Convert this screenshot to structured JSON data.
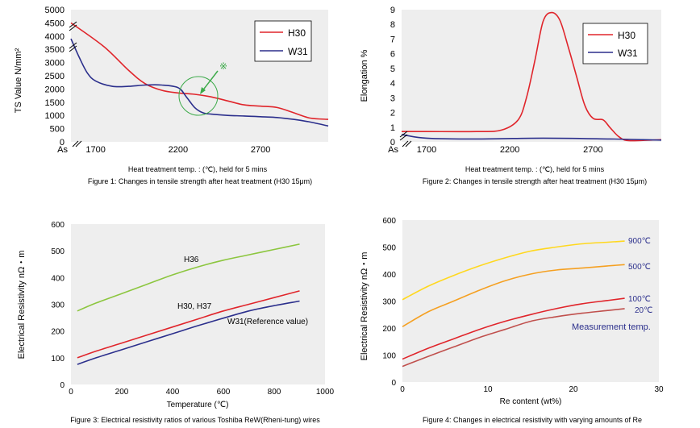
{
  "colors": {
    "plot_bg": "#eeeeee",
    "h30": "#e0252b",
    "w31": "#2b2f8c",
    "green": "#8cc63f",
    "yellow": "#ffd81f",
    "orange": "#f5a021",
    "red": "#e0252b",
    "dark_red": "#c0504d",
    "marker": "#3daa4a",
    "text_blue": "#2b2f8c"
  },
  "chart_data": [
    {
      "id": "chart1",
      "type": "line",
      "ylabel": "TS Value  N/mm²",
      "xlabel": "Heat treatment temp. : (℃), held for 5 mins",
      "caption": "Figure 1: Changes in tensile strength after heat treatment (H30 15μm)",
      "xlim": [
        1550,
        3110
      ],
      "ylim": [
        0,
        5000
      ],
      "yticks": [
        0,
        500,
        1000,
        1500,
        2000,
        2500,
        3000,
        3500,
        4000,
        4500,
        5000
      ],
      "xticks": [
        {
          "v": 1550,
          "label": "As"
        },
        {
          "v": 1700,
          "label": "1700"
        },
        {
          "v": 2200,
          "label": "2200"
        },
        {
          "v": 2700,
          "label": "2700"
        }
      ],
      "series": [
        {
          "name": "H30",
          "color": "#e0252b",
          "x": [
            1550,
            1750,
            1900,
            2000,
            2100,
            2200,
            2300,
            2400,
            2500,
            2600,
            2700,
            2800,
            2900,
            3000,
            3110
          ],
          "values": [
            4500,
            3600,
            2700,
            2200,
            1950,
            1850,
            1800,
            1700,
            1550,
            1400,
            1350,
            1300,
            1100,
            900,
            850
          ]
        },
        {
          "name": "W31",
          "color": "#2b2f8c",
          "x": [
            1550,
            1600,
            1650,
            1700,
            1800,
            1900,
            2000,
            2100,
            2200,
            2250,
            2300,
            2350,
            2400,
            2500,
            2600,
            2700,
            2800,
            2900,
            3000,
            3110
          ],
          "values": [
            3900,
            3200,
            2600,
            2300,
            2100,
            2100,
            2150,
            2150,
            2050,
            1700,
            1300,
            1100,
            1050,
            1000,
            980,
            950,
            920,
            850,
            750,
            600
          ]
        }
      ],
      "legend": [
        "H30",
        "W31"
      ],
      "annotation": "※"
    },
    {
      "id": "chart2",
      "type": "line",
      "ylabel": "Elongation  %",
      "xlabel": "Heat treatment temp. : (℃), held for 5 mins",
      "caption": "Figure 2: Changes in tensile strength after heat treatment (H30 15μm)",
      "xlim": [
        1550,
        3110
      ],
      "ylim": [
        0,
        9
      ],
      "yticks": [
        0,
        1,
        2,
        3,
        4,
        5,
        6,
        7,
        8,
        9
      ],
      "xticks": [
        {
          "v": 1550,
          "label": "As"
        },
        {
          "v": 1700,
          "label": "1700"
        },
        {
          "v": 2200,
          "label": "2200"
        },
        {
          "v": 2700,
          "label": "2700"
        }
      ],
      "series": [
        {
          "name": "H30",
          "color": "#e0252b",
          "x": [
            1550,
            1700,
            2000,
            2150,
            2250,
            2300,
            2350,
            2400,
            2450,
            2500,
            2550,
            2600,
            2650,
            2700,
            2760,
            2800,
            2850,
            2900,
            3000,
            3110
          ],
          "values": [
            0.7,
            0.7,
            0.7,
            0.8,
            1.5,
            3.0,
            5.5,
            8.2,
            8.8,
            8.3,
            6.5,
            4.5,
            2.5,
            1.6,
            1.5,
            1.0,
            0.4,
            0.1,
            0.1,
            0.15
          ]
        },
        {
          "name": "W31",
          "color": "#2b2f8c",
          "x": [
            1550,
            1700,
            2000,
            2400,
            2800,
            3000,
            3110
          ],
          "values": [
            0.5,
            0.25,
            0.2,
            0.25,
            0.2,
            0.15,
            0.12
          ]
        }
      ],
      "legend": [
        "H30",
        "W31"
      ]
    },
    {
      "id": "chart3",
      "type": "line",
      "ylabel": "Electrical Resistivity  nΩ・m",
      "xlabel": "Temperature (℃)",
      "caption": "Figure 3: Electrical resistivity ratios of various Toshiba ReW(Rheni-tung) wires",
      "xlim": [
        0,
        1000
      ],
      "ylim": [
        0,
        600
      ],
      "xticks": [
        0,
        200,
        400,
        600,
        800,
        1000
      ],
      "yticks": [
        0,
        100,
        200,
        300,
        400,
        500,
        600
      ],
      "series": [
        {
          "name": "H36",
          "color": "#8cc63f",
          "x": [
            25,
            100,
            200,
            300,
            400,
            500,
            600,
            700,
            800,
            900
          ],
          "values": [
            275,
            305,
            340,
            375,
            410,
            440,
            465,
            485,
            505,
            525
          ]
        },
        {
          "name": "H30, H37",
          "color": "#e0252b",
          "x": [
            25,
            100,
            200,
            300,
            400,
            500,
            600,
            700,
            800,
            900
          ],
          "values": [
            100,
            125,
            155,
            185,
            215,
            245,
            275,
            300,
            325,
            350
          ]
        },
        {
          "name": "W31(Reference value)",
          "color": "#2b2f8c",
          "x": [
            25,
            100,
            200,
            300,
            400,
            500,
            600,
            700,
            800,
            900
          ],
          "values": [
            75,
            100,
            130,
            160,
            190,
            220,
            248,
            275,
            295,
            312
          ]
        }
      ],
      "labels": [
        "H36",
        "H30, H37",
        "W31(Reference value)"
      ]
    },
    {
      "id": "chart4",
      "type": "line",
      "ylabel": "Electrical Resistivity  nΩ・m",
      "xlabel": "Re content (wt%)",
      "caption": "Figure 4: Changes in electrical resistivity with varying amounts of Re",
      "xlim": [
        0,
        30
      ],
      "ylim": [
        0,
        600
      ],
      "xticks": [
        0,
        10,
        20,
        30
      ],
      "yticks": [
        0,
        100,
        200,
        300,
        400,
        500,
        600
      ],
      "series": [
        {
          "name": "900℃",
          "color": "#ffd81f",
          "x": [
            0,
            3,
            6,
            9,
            12,
            15,
            18,
            21,
            24,
            26
          ],
          "values": [
            305,
            355,
            395,
            430,
            460,
            485,
            500,
            512,
            518,
            522
          ]
        },
        {
          "name": "500℃",
          "color": "#f5a021",
          "x": [
            0,
            3,
            6,
            9,
            12,
            15,
            18,
            21,
            24,
            26
          ],
          "values": [
            205,
            260,
            300,
            340,
            375,
            400,
            415,
            422,
            430,
            435
          ]
        },
        {
          "name": "100℃",
          "color": "#e0252b",
          "x": [
            0,
            3,
            6,
            9,
            12,
            15,
            18,
            21,
            24,
            26
          ],
          "values": [
            85,
            125,
            160,
            195,
            225,
            250,
            272,
            290,
            302,
            310
          ]
        },
        {
          "name": "20℃",
          "color": "#c0504d",
          "x": [
            0,
            3,
            6,
            9,
            12,
            15,
            18,
            21,
            24,
            26
          ],
          "values": [
            58,
            95,
            130,
            165,
            195,
            225,
            242,
            255,
            265,
            272
          ]
        }
      ],
      "labels": [
        "900℃",
        "500℃",
        "100℃",
        "20℃"
      ],
      "annotation": "Measurement temp."
    }
  ]
}
